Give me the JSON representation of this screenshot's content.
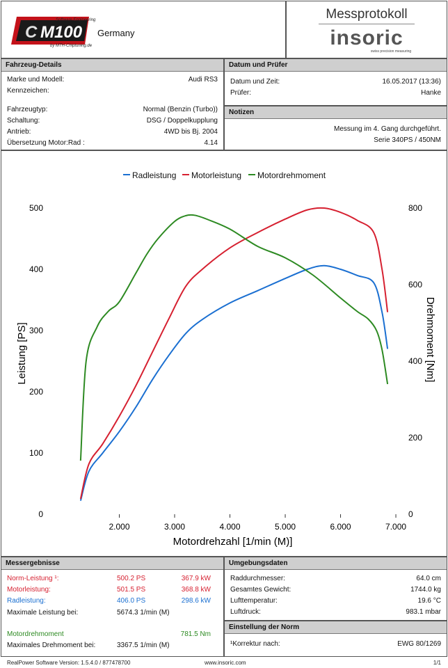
{
  "header": {
    "logo_tagline_top": "Software Engineering",
    "logo_brand": "M100",
    "logo_tagline_bottom": "by MTH-Chiptuning.de",
    "logo_country": "Germany",
    "title": "Messprotokoll",
    "brand": "insoric",
    "brand_sub": "swiss precision measuring"
  },
  "vehicle": {
    "heading": "Fahrzeug-Details",
    "rows": [
      {
        "label": "Marke und Modell:",
        "value": "Audi RS3"
      },
      {
        "label": "Kennzeichen:",
        "value": ""
      },
      {
        "label": "Fahrzeugtyp:",
        "value": "Normal (Benzin (Turbo))"
      },
      {
        "label": "Schaltung:",
        "value": "DSG / Doppelkupplung"
      },
      {
        "label": "Antrieb:",
        "value": "4WD bis Bj. 2004"
      },
      {
        "label": "Übersetzung Motor:Rad :",
        "value": "4.14"
      }
    ]
  },
  "date": {
    "heading": "Datum und Prüfer",
    "rows": [
      {
        "label": "Datum und Zeit:",
        "value": "16.05.2017 (13:36)"
      },
      {
        "label": "Prüfer:",
        "value": "Hanke"
      }
    ]
  },
  "notes": {
    "heading": "Notizen",
    "line1": "Messung im 4. Gang durchgeführt.",
    "line2": "Serie 340PS / 450NM"
  },
  "chart_data": {
    "type": "line",
    "legend": [
      "Radleistung",
      "Motorleistung",
      "Motordrehmoment"
    ],
    "legend_placement": "top-center",
    "xlabel": "Motordrehzahl [1/min (M)]",
    "ylabel": "Leistung [PS]",
    "y2label": "Drehmoment [Nm]",
    "xlim": [
      1000,
      7100
    ],
    "ylim": [
      0,
      525
    ],
    "y2lim": [
      0,
      840
    ],
    "x_ticks": [
      2000,
      3000,
      4000,
      5000,
      6000,
      7000
    ],
    "x_tick_labels": [
      "2.000",
      "3.000",
      "4.000",
      "5.000",
      "6.000",
      "7.000"
    ],
    "y_ticks": [
      0,
      100,
      200,
      300,
      400,
      500
    ],
    "y2_ticks": [
      0,
      200,
      400,
      600,
      800
    ],
    "grid": false,
    "colors": {
      "Radleistung": "#1a6fd1",
      "Motorleistung": "#d62030",
      "Motordrehmoment": "#2d8a22"
    },
    "series": [
      {
        "name": "Radleistung",
        "axis": "left",
        "x": [
          1300,
          1450,
          1700,
          2000,
          2300,
          2600,
          2900,
          3200,
          3500,
          4000,
          4500,
          5000,
          5400,
          5700,
          6000,
          6300,
          6600,
          6750,
          6850
        ],
        "y": [
          22,
          70,
          100,
          135,
          175,
          220,
          260,
          295,
          318,
          345,
          365,
          385,
          400,
          406,
          400,
          390,
          378,
          330,
          270
        ]
      },
      {
        "name": "Motorleistung",
        "axis": "left",
        "x": [
          1300,
          1450,
          1700,
          2000,
          2300,
          2600,
          2900,
          3200,
          3500,
          4000,
          4500,
          5000,
          5400,
          5700,
          6000,
          6300,
          6600,
          6750,
          6850
        ],
        "y": [
          25,
          82,
          115,
          160,
          210,
          265,
          320,
          372,
          400,
          435,
          460,
          482,
          497,
          500,
          493,
          480,
          460,
          400,
          330
        ]
      },
      {
        "name": "Motordrehmoment",
        "axis": "right",
        "x": [
          1300,
          1400,
          1600,
          1800,
          2000,
          2300,
          2500,
          2700,
          3000,
          3200,
          3367,
          3600,
          4000,
          4500,
          5000,
          5500,
          6000,
          6300,
          6500,
          6650,
          6750,
          6850
        ],
        "y": [
          140,
          400,
          490,
          530,
          555,
          630,
          680,
          720,
          765,
          780,
          781,
          770,
          745,
          700,
          670,
          625,
          565,
          530,
          510,
          480,
          430,
          340
        ]
      }
    ]
  },
  "results": {
    "heading": "Messergebnisse",
    "norm": {
      "label": "Norm-Leistung ¹:",
      "ps": "500.2 PS",
      "kw": "367.9 kW"
    },
    "motor": {
      "label": "Motorleistung:",
      "ps": "501.5 PS",
      "kw": "368.8 kW"
    },
    "rad": {
      "label": "Radleistung:",
      "ps": "406.0 PS",
      "kw": "298.6 kW"
    },
    "maxpow": {
      "label": "Maximale Leistung bei:",
      "value": "5674.3 1/min (M)"
    },
    "torque": {
      "label": "Motordrehmoment",
      "value": "781.5 Nm"
    },
    "maxtorque": {
      "label": "Maximales Drehmoment bei:",
      "value": "3367.5 1/min (M)"
    }
  },
  "environment": {
    "heading": "Umgebungsdaten",
    "rows": [
      {
        "label": "Raddurchmesser:",
        "value": "64.0 cm"
      },
      {
        "label": "Gesamtes Gewicht:",
        "value": "1744.0 kg"
      },
      {
        "label": "Lufttemperatur:",
        "value": "19.6 °C"
      },
      {
        "label": "Luftdruck:",
        "value": "983.1 mbar"
      }
    ]
  },
  "norm": {
    "heading": "Einstellung der Norm",
    "label": "¹Korrektur nach:",
    "value": "EWG 80/1269"
  },
  "footer": {
    "version": "RealPower Software Version: 1.5.4.0 / 877478700",
    "url": "www.insoric.com",
    "page": "1/1"
  }
}
